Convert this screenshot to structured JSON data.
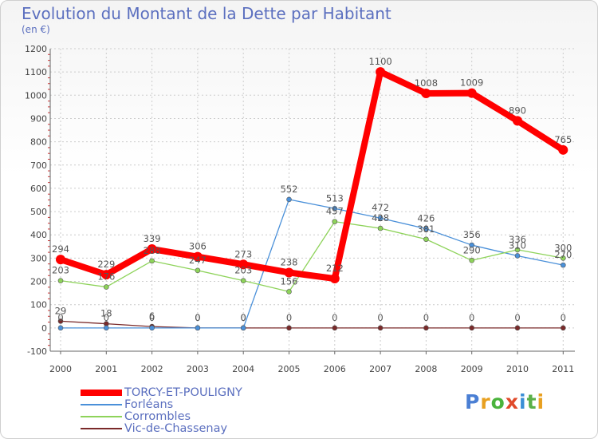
{
  "header": {
    "title": "Evolution du Montant de la Dette par Habitant",
    "subtitle": "(en €)"
  },
  "logo": {
    "text": "Proxiti",
    "letters": [
      "P",
      "r",
      "o",
      "x",
      "i",
      "t",
      "i"
    ],
    "colors": [
      "#4a7fd4",
      "#e8a020",
      "#4ab33c",
      "#e04a2a",
      "#3b8fd6",
      "#5bb04a",
      "#e8a020"
    ]
  },
  "chart_data": {
    "type": "line",
    "title": "Evolution du Montant de la Dette par Habitant",
    "ylabel": "(en €)",
    "x": [
      "2000",
      "2001",
      "2002",
      "2003",
      "2004",
      "2005",
      "2006",
      "2007",
      "2008",
      "2009",
      "2010",
      "2011"
    ],
    "ylim": [
      -100,
      1200
    ],
    "yticks": [
      -100,
      0,
      100,
      200,
      300,
      400,
      500,
      600,
      700,
      800,
      900,
      1000,
      1100,
      1200
    ],
    "series": [
      {
        "name": "TORCY-ET-POULIGNY",
        "color": "#ff0000",
        "values": [
          294,
          229,
          339,
          306,
          273,
          238,
          212,
          1100,
          1008,
          1009,
          890,
          765
        ],
        "labels": [
          "294",
          "229",
          "339",
          "306",
          "273",
          "238",
          "212",
          "1100",
          "1008",
          "1009",
          "890",
          "765"
        ]
      },
      {
        "name": "Forléans",
        "color": "#4a90d9",
        "values": [
          0,
          0,
          0,
          0,
          0,
          552,
          513,
          472,
          426,
          356,
          310,
          270
        ],
        "labels": [
          "0",
          "0",
          "0",
          "0",
          "0",
          "552",
          "513",
          "472",
          "426",
          "356",
          "310",
          "270"
        ]
      },
      {
        "name": "Corrombles",
        "color": "#8ed35a",
        "values": [
          203,
          176,
          288,
          247,
          203,
          156,
          457,
          428,
          381,
          290,
          336,
          300
        ],
        "labels": [
          "203",
          "176",
          "288",
          "247",
          "203",
          "156",
          "457",
          "428",
          "381",
          "290",
          "336",
          "300"
        ]
      },
      {
        "name": "Vic-de-Chassenay",
        "color": "#7a2a2a",
        "values": [
          29,
          18,
          6,
          0,
          0,
          0,
          0,
          0,
          0,
          0,
          0,
          0
        ],
        "labels": [
          "29",
          "18",
          "6",
          "0",
          "0",
          "0",
          "0",
          "0",
          "0",
          "0",
          "0",
          "0"
        ]
      }
    ],
    "grid": true,
    "legend": "bottom-left"
  }
}
